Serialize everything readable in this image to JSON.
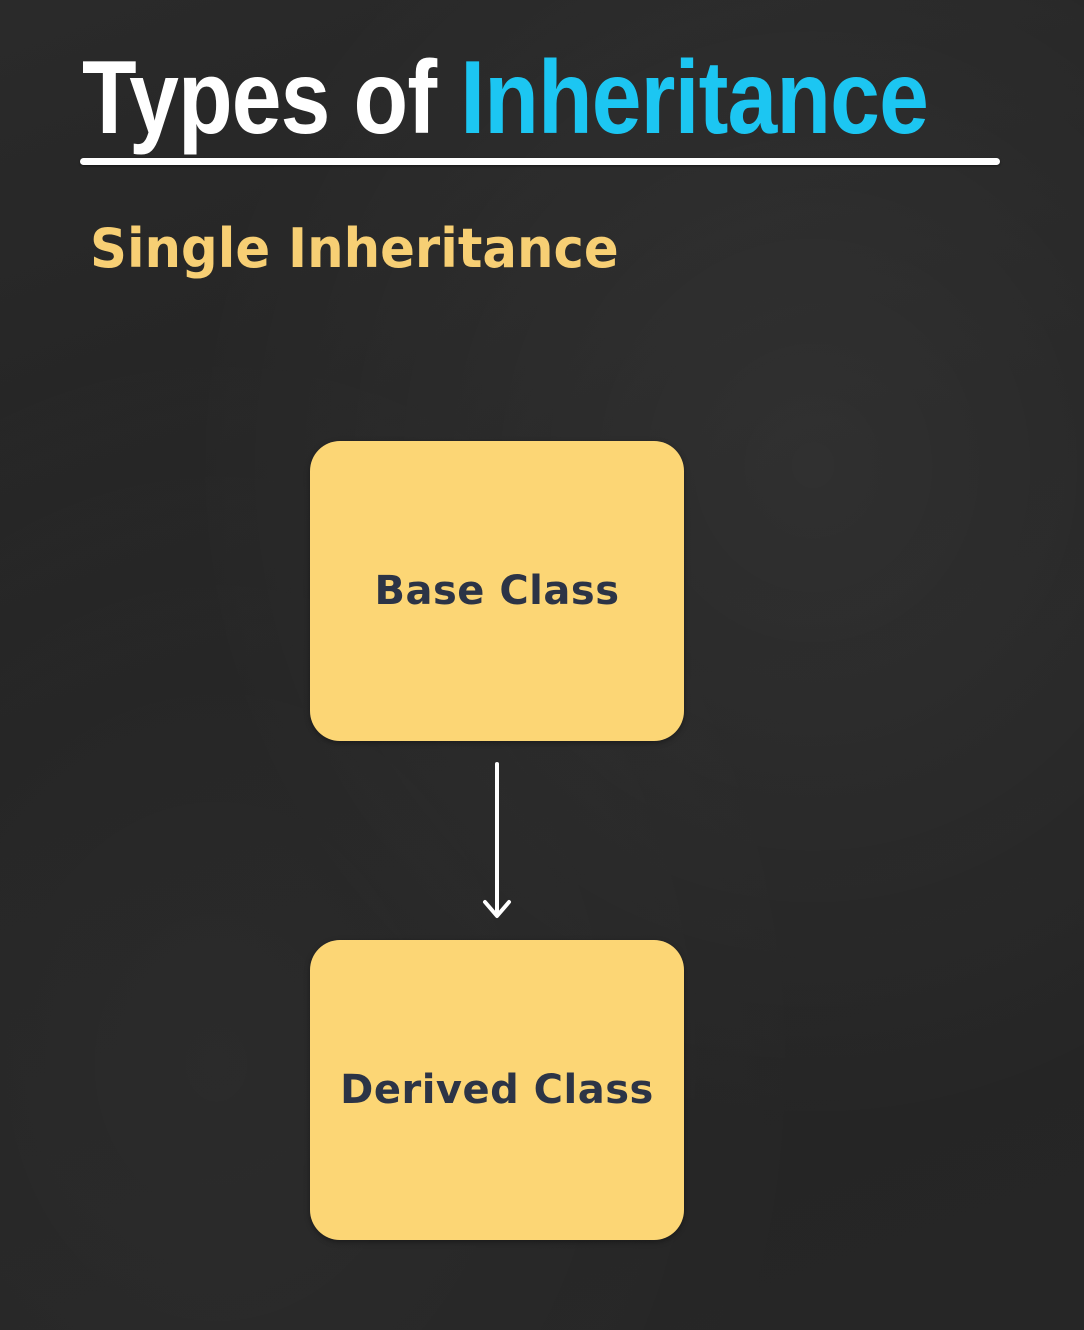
{
  "title": {
    "part1": "Types of",
    "part2": "Inheritance"
  },
  "subtitle": "Single Inheritance",
  "diagram": {
    "nodes": [
      {
        "id": "base",
        "label": "Base Class"
      },
      {
        "id": "derived",
        "label": "Derived Class"
      }
    ],
    "edges": [
      {
        "from": "base",
        "to": "derived"
      }
    ]
  },
  "colors": {
    "background": "#262626",
    "title_text": "#ffffff",
    "title_accent": "#1cc6f2",
    "subtitle_text": "#f7cf74",
    "box_fill": "#fcd675",
    "box_text": "#2c3446",
    "arrow": "#ffffff"
  }
}
